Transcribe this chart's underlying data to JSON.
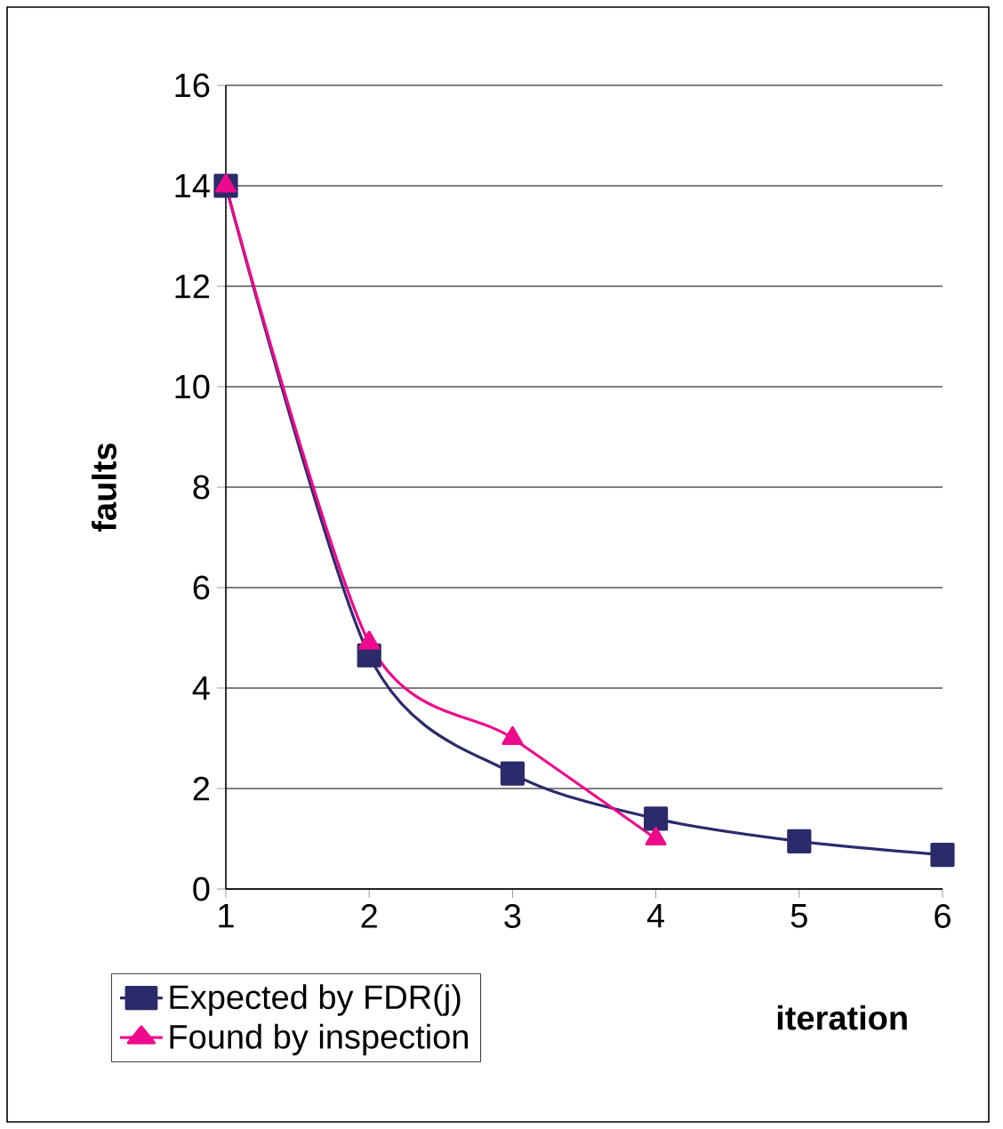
{
  "chart_data": {
    "type": "line",
    "xlabel": "iteration",
    "ylabel": "faults",
    "x": [
      1,
      2,
      3,
      4,
      5,
      6
    ],
    "xlim": [
      1,
      6
    ],
    "xticks": [
      1,
      2,
      3,
      4,
      5,
      6
    ],
    "ylim": [
      0,
      16
    ],
    "yticks": [
      0,
      2,
      4,
      6,
      8,
      10,
      12,
      14,
      16
    ],
    "grid": "y",
    "legend": "bottom left",
    "series": [
      {
        "name": "Expected by FDR(j)",
        "color": "#2b2b6b",
        "marker": "square",
        "values": [
          14,
          4.65,
          2.3,
          1.4,
          0.95,
          0.68
        ]
      },
      {
        "name": "Found by inspection",
        "color": "#ee0a8c",
        "marker": "triangle",
        "x": [
          1,
          2,
          3,
          4
        ],
        "values": [
          14,
          4.9,
          3.0,
          1.0
        ]
      }
    ]
  }
}
